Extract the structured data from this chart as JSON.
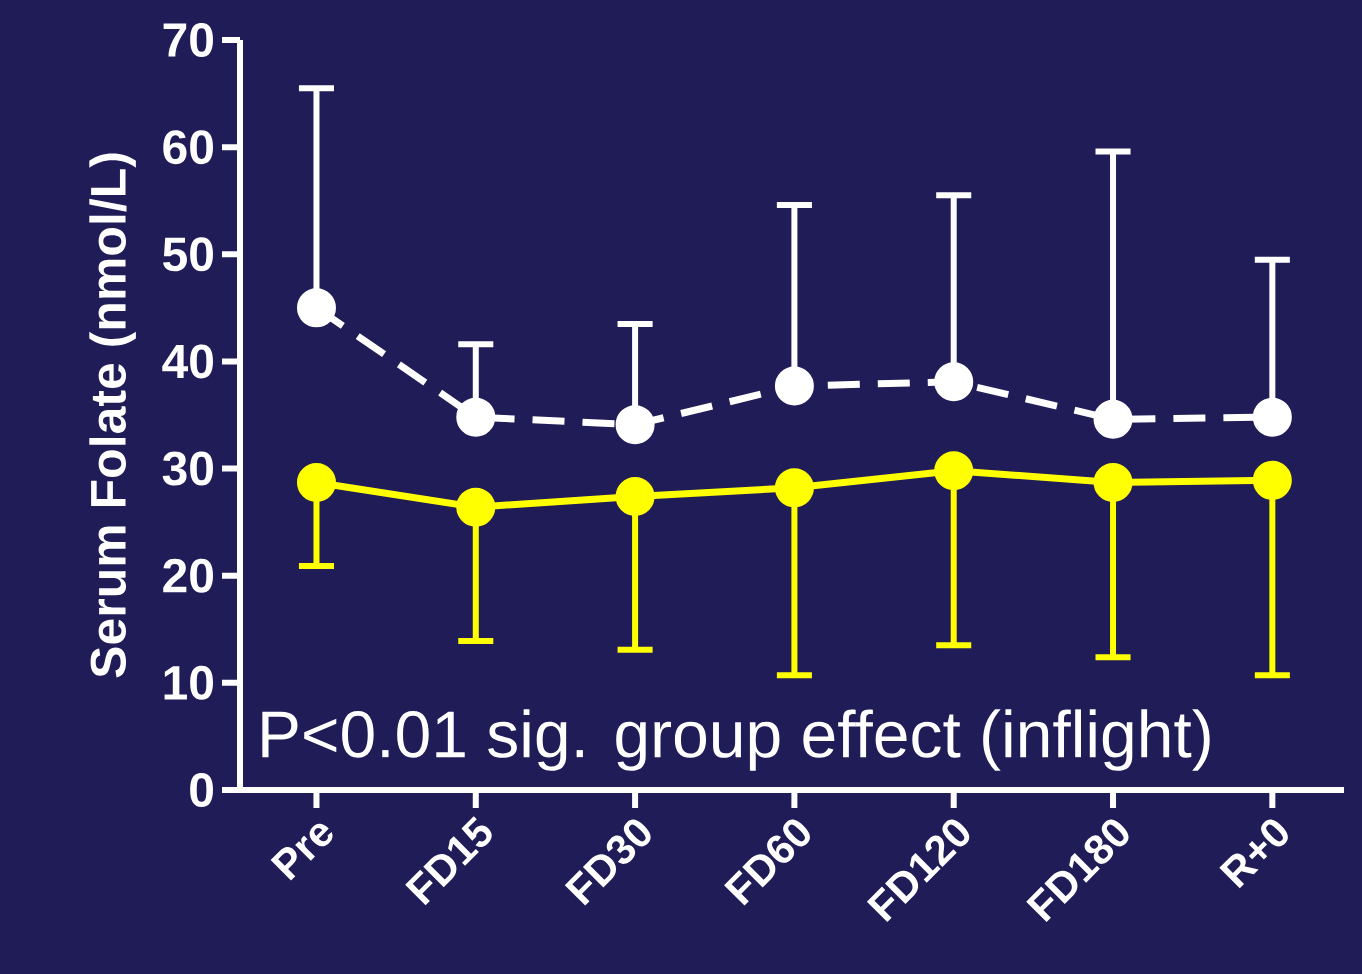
{
  "chart_data": {
    "type": "line",
    "ylabel": "Serum Folate (nmol/L)",
    "categories": [
      "Pre",
      "FD15",
      "FD30",
      "FD60",
      "FD120",
      "FD180",
      "R+0"
    ],
    "ylim": [
      0,
      70
    ],
    "yticks": [
      0,
      10,
      20,
      30,
      40,
      50,
      60,
      70
    ],
    "marker": "circle",
    "grid": false,
    "series": [
      {
        "color": "#ffffff",
        "line_style": "dashed",
        "values": [
          45,
          34.8,
          34.1,
          37.7,
          38.1,
          34.6,
          34.8
        ],
        "errors": [
          [
            45,
            65.5
          ],
          [
            34.8,
            41.6
          ],
          [
            34.1,
            43.5
          ],
          [
            37.7,
            54.6
          ],
          [
            38.1,
            55.5
          ],
          [
            34.6,
            59.6
          ],
          [
            34.8,
            49.5
          ]
        ]
      },
      {
        "color": "#ffff00",
        "line_style": "solid",
        "values": [
          28.7,
          26.4,
          27.4,
          28.2,
          29.8,
          28.7,
          28.9
        ],
        "errors": [
          [
            20.9,
            28.7
          ],
          [
            13.9,
            26.4
          ],
          [
            13.1,
            27.4
          ],
          [
            10.7,
            28.2
          ],
          [
            13.5,
            29.8
          ],
          [
            12.4,
            28.7
          ],
          [
            10.7,
            28.9
          ]
        ]
      }
    ],
    "annotations": [
      "P<0.01 sig. group effect (inflight)"
    ]
  }
}
